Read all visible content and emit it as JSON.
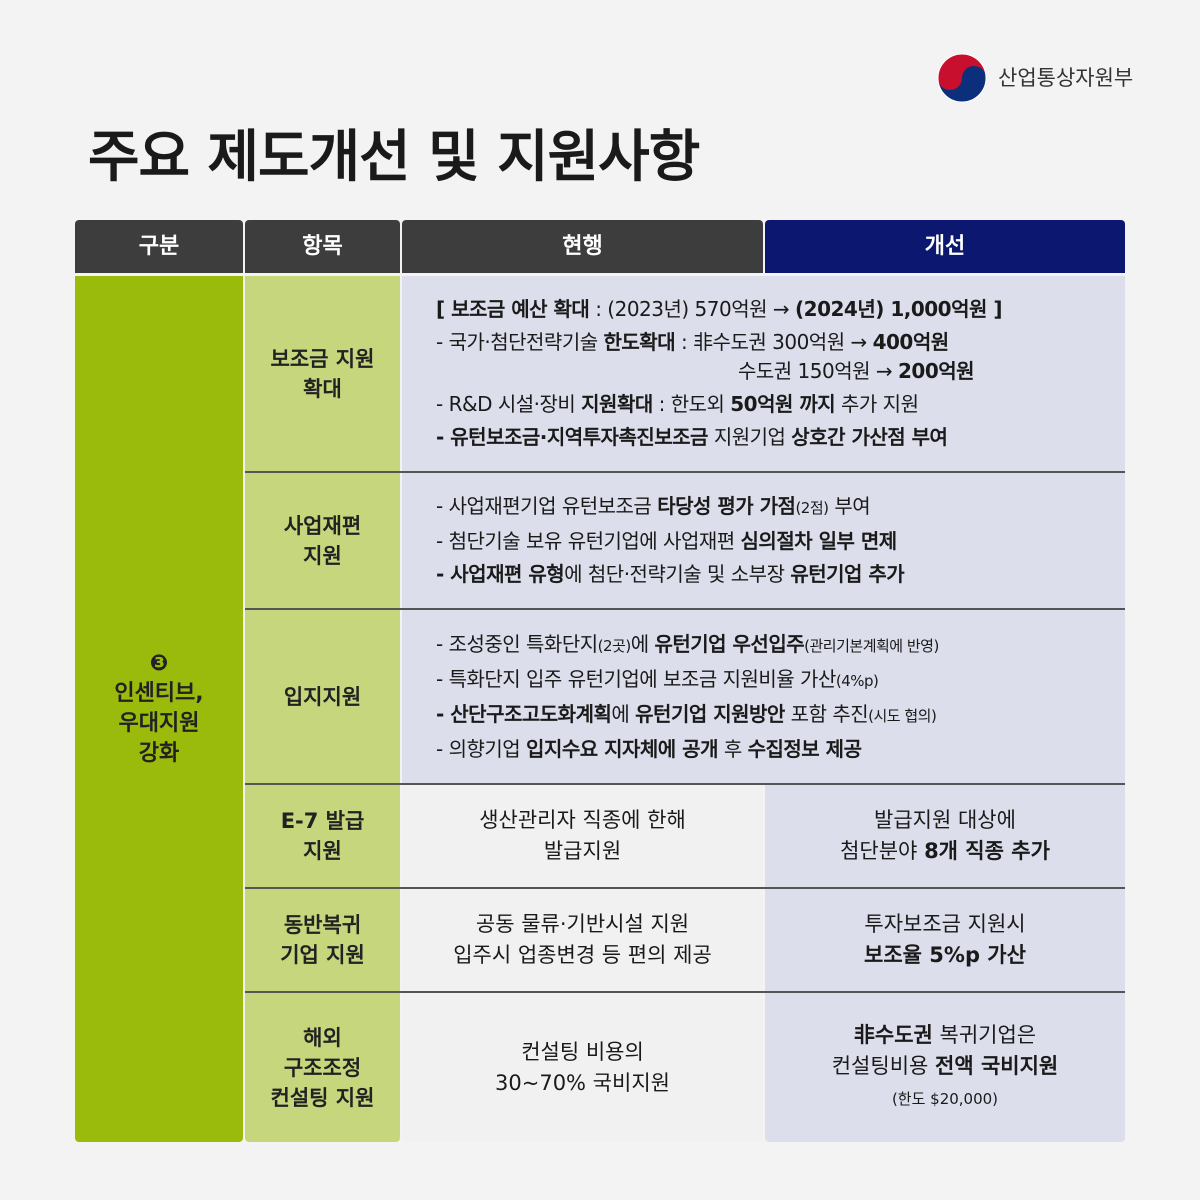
{
  "header": {
    "ministry": "산업통상자원부",
    "title": "주요 제도개선 및 지원사항"
  },
  "table": {
    "columns": [
      "구분",
      "항목",
      "현행",
      "개선"
    ],
    "category": {
      "number": "❸",
      "label": [
        "인센티브,",
        "우대지원",
        "강화"
      ]
    },
    "rows": [
      {
        "item": [
          "보조금 지원",
          "확대"
        ],
        "merged": [
          [
            {
              "text": "[ 보조금 예산 확대",
              "bold": true
            },
            {
              "text": " : (2023년) 570억원 → "
            },
            {
              "text": "(2024년) 1,000억원 ]",
              "bold": true
            }
          ],
          [
            {
              "text": "- 국가·첨단전략기술 "
            },
            {
              "text": "한도확대",
              "bold": true
            },
            {
              "text": " : 非수도권 300억원 → "
            },
            {
              "text": "400억원",
              "bold": true
            }
          ],
          [
            {
              "text": "수도권 150억원 → "
            },
            {
              "text": "200억원",
              "bold": true
            }
          ],
          [
            {
              "text": "- R&D 시설·장비 "
            },
            {
              "text": "지원확대",
              "bold": true
            },
            {
              "text": " : 한도외 "
            },
            {
              "text": "50억원 까지",
              "bold": true
            },
            {
              "text": " 추가 지원"
            }
          ],
          [
            {
              "text": "- 유턴보조금·지역투자촉진보조금",
              "bold": true
            },
            {
              "text": " 지원기업 "
            },
            {
              "text": "상호간 가산점 부여",
              "bold": true
            }
          ]
        ]
      },
      {
        "item": [
          "사업재편",
          "지원"
        ],
        "merged": [
          [
            {
              "text": "- 사업재편기업 유턴보조금 "
            },
            {
              "text": "타당성 평가 가점",
              "bold": true
            },
            {
              "text": "(2점)",
              "small": true
            },
            {
              "text": " 부여"
            }
          ],
          [
            {
              "text": "- 첨단기술 보유 유턴기업에 사업재편 "
            },
            {
              "text": "심의절차 일부 면제",
              "bold": true
            }
          ],
          [
            {
              "text": "- 사업재편 유형",
              "bold": true
            },
            {
              "text": "에 첨단·전략기술 및 소부장 "
            },
            {
              "text": "유턴기업 추가",
              "bold": true
            }
          ]
        ]
      },
      {
        "item": [
          "입지지원"
        ],
        "merged": [
          [
            {
              "text": "- 조성중인 특화단지"
            },
            {
              "text": "(2곳)",
              "small": true
            },
            {
              "text": "에 "
            },
            {
              "text": "유턴기업 우선입주",
              "bold": true
            },
            {
              "text": "(관리기본계획에 반영)",
              "small": true
            }
          ],
          [
            {
              "text": "- 특화단지 입주 유턴기업에 보조금 지원비율 가산"
            },
            {
              "text": "(4%p)",
              "small": true
            }
          ],
          [
            {
              "text": "- 산단구조고도화계획",
              "bold": true
            },
            {
              "text": "에 "
            },
            {
              "text": "유턴기업 지원방안",
              "bold": true
            },
            {
              "text": " 포함 추진"
            },
            {
              "text": "(시도 협의)",
              "small": true
            }
          ],
          [
            {
              "text": "- 의향기업 "
            },
            {
              "text": "입지수요 지자체에 공개",
              "bold": true
            },
            {
              "text": " 후 "
            },
            {
              "text": "수집정보 제공",
              "bold": true
            }
          ]
        ]
      },
      {
        "item": [
          "E-7 발급",
          "지원"
        ],
        "current": [
          [
            {
              "text": "생산관리자 직종에 한해"
            }
          ],
          [
            {
              "text": "발급지원"
            }
          ]
        ],
        "improved": [
          [
            {
              "text": "발급지원 대상에"
            }
          ],
          [
            {
              "text": "첨단분야 "
            },
            {
              "text": "8개 직종 추가",
              "bold": true
            }
          ]
        ]
      },
      {
        "item": [
          "동반복귀",
          "기업 지원"
        ],
        "current": [
          [
            {
              "text": "공동 물류·기반시설 지원"
            }
          ],
          [
            {
              "text": "입주시 업종변경 등 편의 제공"
            }
          ]
        ],
        "improved": [
          [
            {
              "text": "투자보조금 지원시"
            }
          ],
          [
            {
              "text": "보조율 5%p 가산",
              "bold": true
            }
          ]
        ]
      },
      {
        "item": [
          "해외",
          "구조조정",
          "컨설팅 지원"
        ],
        "current": [
          [
            {
              "text": "컨설팅 비용의"
            }
          ],
          [
            {
              "text": "30~70% 국비지원"
            }
          ]
        ],
        "improved": [
          [
            {
              "text": "非수도권",
              "bold": true
            },
            {
              "text": " 복귀기업은"
            }
          ],
          [
            {
              "text": "컨설팅비용 "
            },
            {
              "text": "전액 국비지원",
              "bold": true
            }
          ],
          [
            {
              "text": "(한도 $20,000)",
              "small": true
            }
          ]
        ]
      }
    ]
  }
}
